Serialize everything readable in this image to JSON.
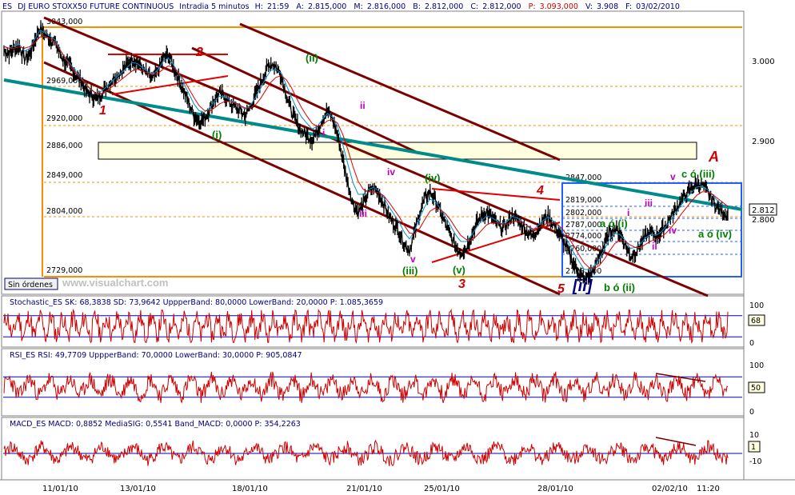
{
  "header": {
    "symbol": "ES",
    "title": "DJ EURO STOXX50 FUTURE CONTINUOUS",
    "timeframe": "Intradia 5 minutos",
    "h_label": "H:",
    "h_value": "21:59",
    "a_label": "A:",
    "a_value": "2.815,000",
    "m_label": "M:",
    "m_value": "2.816,000",
    "b_label": "B:",
    "b_value": "2.812,000",
    "c_label": "C:",
    "c_value": "2.812,000",
    "p_label": "P:",
    "p_value": "3.093,000",
    "v_label": "V:",
    "v_value": "3.908",
    "f_label": "F:",
    "f_value": "03/02/2010"
  },
  "watermark": "www.visualchart.com",
  "orders_button": "Sin órdenes",
  "colors": {
    "price": "#000000",
    "ma_red": "#e00000",
    "ma_blue": "#0090d0",
    "channel": "#7b0000",
    "trend": "#008b8b",
    "level": "#ff8c00",
    "box": "#2060ff",
    "indicator": "#d00000",
    "band": "#0000c0"
  },
  "chart_data": [
    {
      "type": "line",
      "name": "price",
      "ylim": [
        2715,
        3060
      ],
      "price_scale": [
        "3.000",
        "2.900",
        "2.800"
      ],
      "last_price": "2.812",
      "level_labels": [
        "3043,000",
        "2969,000",
        "2920,000",
        "2886,000",
        "2849,000",
        "2804,000",
        "2729,000"
      ],
      "box_levels": [
        "2847,000",
        "2819,000",
        "2802,000",
        "2787,000",
        "2774,000",
        "2760,000",
        "2728,000"
      ],
      "x_labels": [
        "11/01/10",
        "13/01/10",
        "18/01/10",
        "21/01/10",
        "25/01/10",
        "28/01/10",
        "02/02/10",
        "11:20"
      ],
      "series": [
        {
          "values": [
            3015,
            3012,
            3018,
            3020,
            3005,
            3010,
            3028,
            3043,
            3035,
            3030,
            3025,
            3010,
            3000,
            2995,
            2985,
            2978,
            2965,
            2960,
            2955,
            2962,
            2970,
            2978,
            2985,
            2990,
            2998,
            3005,
            3000,
            2992,
            2985,
            2980,
            2990,
            3005,
            3010,
            2995,
            2980,
            2965,
            2950,
            2935,
            2928,
            2930,
            2942,
            2955,
            2962,
            2958,
            2950,
            2945,
            2940,
            2935,
            2945,
            2960,
            2975,
            2990,
            3000,
            2995,
            2985,
            2960,
            2940,
            2925,
            2915,
            2910,
            2905,
            2915,
            2930,
            2940,
            2930,
            2910,
            2880,
            2850,
            2825,
            2815,
            2825,
            2840,
            2845,
            2838,
            2825,
            2810,
            2800,
            2790,
            2775,
            2768,
            2790,
            2815,
            2832,
            2840,
            2830,
            2815,
            2800,
            2785,
            2772,
            2765,
            2770,
            2785,
            2800,
            2810,
            2815,
            2808,
            2800,
            2795,
            2800,
            2810,
            2805,
            2798,
            2790,
            2785,
            2795,
            2805,
            2810,
            2800,
            2790,
            2778,
            2765,
            2750,
            2740,
            2730,
            2735,
            2745,
            2760,
            2775,
            2790,
            2795,
            2788,
            2775,
            2760,
            2765,
            2775,
            2785,
            2790,
            2785,
            2790,
            2800,
            2810,
            2820,
            2830,
            2838,
            2845,
            2850,
            2848,
            2840,
            2830,
            2820,
            2815,
            2812
          ]
        },
        {
          "name": "ma",
          "values": [
            3020,
            3018,
            3018,
            3020,
            3018,
            3020,
            3025,
            3032,
            3033,
            3030,
            3025,
            3015,
            3005,
            2995,
            2987,
            2980,
            2973,
            2967,
            2962,
            2962,
            2965,
            2970,
            2975,
            2980,
            2985,
            2990,
            2992,
            2990,
            2987,
            2985,
            2987,
            2992,
            2996,
            2994,
            2988,
            2979,
            2968,
            2957,
            2947,
            2941,
            2940,
            2944,
            2949,
            2952,
            2952,
            2950,
            2947,
            2944,
            2944,
            2948,
            2956,
            2966,
            2976,
            2982,
            2984,
            2979,
            2969,
            2956,
            2944,
            2934,
            2925,
            2921,
            2923,
            2928,
            2930,
            2925,
            2911,
            2892,
            2871,
            2853,
            2843,
            2840,
            2840,
            2839,
            2835,
            2827,
            2818,
            2809,
            2798,
            2789,
            2788,
            2795,
            2806,
            2816,
            2820,
            2818,
            2813,
            2805,
            2795,
            2786,
            2781,
            2780,
            2785,
            2792,
            2799,
            2802,
            2802,
            2800,
            2800,
            2803,
            2804,
            2802,
            2798,
            2794,
            2795,
            2798,
            2802,
            2802,
            2799,
            2792,
            2783,
            2773,
            2762,
            2752,
            2746,
            2745,
            2749,
            2757,
            2767,
            2776,
            2780,
            2779,
            2774,
            2771,
            2771,
            2775,
            2779,
            2781,
            2784,
            2789,
            2796,
            2804,
            2813,
            2821,
            2829,
            2836,
            2840,
            2840,
            2837,
            2832,
            2827,
            2822
          ]
        }
      ]
    },
    {
      "type": "line",
      "name": "Stochastic_ES",
      "label": "Stochastic_ES  SK: 68,3838  SD: 73,9642  UppperBand: 80,0000  LowerBand: 20,0000  P: 1.085,3659",
      "ylim": [
        0,
        100
      ],
      "bands": [
        80,
        20
      ],
      "scale_labels": [
        "100",
        "0"
      ],
      "last_value": "68"
    },
    {
      "type": "line",
      "name": "RSI_ES",
      "label": "RSI_ES  RSI: 49,7709  UppperBand: 70,0000  LowerBand: 30,0000  P: 905,0847",
      "ylim": [
        0,
        100
      ],
      "bands": [
        70,
        30
      ],
      "scale_labels": [
        "100",
        "0"
      ],
      "last_value": "50"
    },
    {
      "type": "line",
      "name": "MACD_ES",
      "label": "MACD_ES  MACD: 0,8852  MediaSIG: 0,5541  Band_MACD: 0,0000  P: 354,2263",
      "ylim": [
        -20,
        20
      ],
      "bands": [
        0
      ],
      "scale_labels": [
        "10",
        "-10"
      ],
      "last_value": "1"
    }
  ],
  "wave_labels": {
    "red_digits": [
      "1",
      "2",
      "3",
      "4",
      "5"
    ],
    "red_A": "A",
    "green_ii": "(ii)",
    "green_i": "(i)",
    "green_iv": "(iv)",
    "green_iii": "(iii)",
    "green_v": "(v)",
    "magenta_ii": "ii",
    "magenta_i": "i",
    "magenta_iv": "iv",
    "magenta_iii": "iii",
    "magenta_v": "v",
    "blue_II": "[ii]",
    "green_b": "b ó (ii)",
    "green_a": "a ó (i)",
    "green_c": "c ó (iii)",
    "green_a2": "a ó (iv)",
    "mag_v2": "v",
    "mag_iii2": "iii",
    "mag_iv2": "iv",
    "mag_ii2": "ii",
    "mag_i2": "i"
  }
}
